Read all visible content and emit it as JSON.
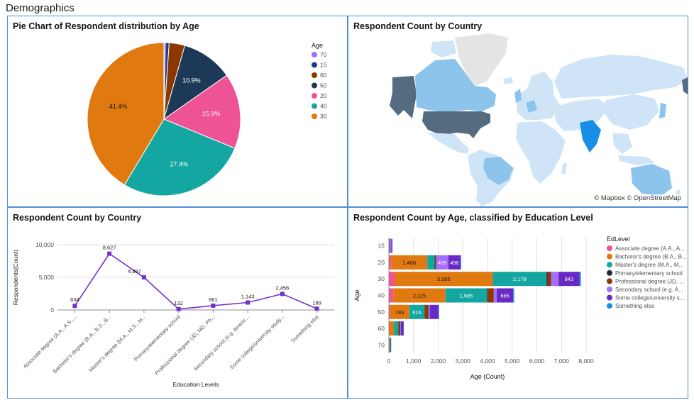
{
  "page": {
    "title": "Demographics"
  },
  "colors": {
    "age": {
      "70": "#a56eff",
      "15": "#1d3c8f",
      "60": "#8a3800",
      "50": "#1c3a57",
      "20": "#ee5396",
      "40": "#14a6a0",
      "30": "#e07a10"
    },
    "edlevel": [
      "#ee5396",
      "#e07a10",
      "#14a6a0",
      "#1c2a3a",
      "#8a3800",
      "#a56eff",
      "#6929c4",
      "#1192e8"
    ],
    "line": "#6f33c9",
    "panel_border": "#4f8fd8"
  },
  "pie_panel": {
    "title": "Pie Chart of Respondent distribution by Age"
  },
  "map_panel": {
    "title": "Respondent Count by Country",
    "attribution": "© Mapbox © OpenStreetMap",
    "colors": {
      "ocean": "#ffffff",
      "land_light": "#cfe5f7",
      "land_mid": "#8cc4ec",
      "land_dark": "#546b80",
      "land_none": "#e4e4e4",
      "highlight": "#1a8ee6"
    }
  },
  "line_panel": {
    "title": "Respondent Count by Country"
  },
  "bar_panel": {
    "title": "Respondent Count by Age, classified by Education Level"
  },
  "chart_data": [
    {
      "type": "pie",
      "title": "Pie Chart of Respondent distribution by Age",
      "legend_title": "Age",
      "legend_position": "top-right",
      "legend": [
        "70",
        "15",
        "60",
        "50",
        "20",
        "40",
        "30"
      ],
      "slices": [
        {
          "label": "70",
          "percent": 0.3,
          "show_label": false
        },
        {
          "label": "15",
          "percent": 0.8,
          "show_label": false
        },
        {
          "label": "60",
          "percent": 3.3,
          "show_label": false
        },
        {
          "label": "50",
          "percent": 10.9,
          "show_label": true,
          "text": "10.9%"
        },
        {
          "label": "20",
          "percent": 15.9,
          "show_label": true,
          "text": "15.9%"
        },
        {
          "label": "40",
          "percent": 27.4,
          "show_label": true,
          "text": "27.4%"
        },
        {
          "label": "30",
          "percent": 41.4,
          "show_label": true,
          "text": "41.4%"
        }
      ]
    },
    {
      "type": "line",
      "title": "Respondent Count by Country",
      "xlabel": "Education Levels",
      "ylabel": "Respondents(Count)",
      "ylim": [
        0,
        10000
      ],
      "yticks": [
        0,
        5000,
        10000
      ],
      "ytick_labels": [
        "0",
        "5,000",
        "10,000"
      ],
      "categories": [
        "Associate degree (A.A., A.S.,...",
        "Bachelor's degree (B.A., B.S., B...",
        "Master's degree (M.A., M.S., M...",
        "Primary/elementary school",
        "Professional degree (JD, MD, Ph...",
        "Secondary school (e.g. Americ...",
        "Some college/university study...",
        "Something else"
      ],
      "values": [
        634,
        8627,
        4997,
        132,
        661,
        1143,
        2456,
        189
      ],
      "value_labels": [
        "634",
        "8,627",
        "4,997",
        "132",
        "661",
        "1,143",
        "2,456",
        "189"
      ]
    },
    {
      "type": "bar",
      "orientation": "horizontal",
      "stacked": true,
      "title": "Respondent Count by Age, classified by Education Level",
      "xlabel": "Age (Count)",
      "ylabel": "Age",
      "xlim": [
        0,
        8000
      ],
      "xticks": [
        0,
        1000,
        2000,
        3000,
        4000,
        5000,
        6000,
        7000,
        8000
      ],
      "xtick_labels": [
        "0",
        "1,000",
        "2,000",
        "3,000",
        "4,000",
        "5,000",
        "6,000",
        "7,000",
        "8,000"
      ],
      "legend_title": "EdLevel",
      "legend_position": "right",
      "legend": [
        "Associate degree (A.A., A...",
        "Bachelor's degree (B.A., B...",
        "Master's degree (M.A., M...",
        "Primary/elementary school",
        "Professional degree (JD, ...",
        "Secondary school (e.g. A...",
        "Some college/university s...",
        "Something else"
      ],
      "categories": [
        "15",
        "20",
        "30",
        "40",
        "50",
        "60",
        "70"
      ],
      "series": [
        {
          "name": "Associate degree (A.A., A...",
          "values": [
            5,
            90,
            230,
            180,
            45,
            15,
            2
          ],
          "labels": [
            "",
            "",
            "",
            "",
            "",
            "",
            ""
          ]
        },
        {
          "name": "Bachelor's degree (B.A., B...",
          "values": [
            10,
            1468,
            3985,
            2115,
            783,
            190,
            25
          ],
          "labels": [
            "",
            "1,468",
            "3,985",
            "2,115",
            "783",
            "",
            ""
          ]
        },
        {
          "name": "Master's degree (M.A., M...",
          "values": [
            5,
            300,
            2178,
            1685,
            616,
            180,
            30
          ],
          "labels": [
            "",
            "",
            "2,178",
            "1,685",
            "616",
            "",
            ""
          ]
        },
        {
          "name": "Primary/elementary school",
          "values": [
            10,
            25,
            40,
            25,
            15,
            5,
            0
          ],
          "labels": [
            "",
            "",
            "",
            "",
            "",
            "",
            ""
          ]
        },
        {
          "name": "Professional degree (JD, ...",
          "values": [
            5,
            35,
            150,
            250,
            150,
            80,
            10
          ],
          "labels": [
            "",
            "",
            "",
            "",
            "",
            "",
            ""
          ]
        },
        {
          "name": "Secondary school (e.g. A...",
          "values": [
            60,
            495,
            300,
            120,
            50,
            20,
            2
          ],
          "labels": [
            "",
            "495",
            "",
            "",
            "",
            "",
            ""
          ]
        },
        {
          "name": "Some college/university s...",
          "values": [
            35,
            496,
            843,
            665,
            350,
            100,
            8
          ],
          "labels": [
            "",
            "496",
            "843",
            "665",
            "",
            "",
            ""
          ]
        },
        {
          "name": "Something else",
          "values": [
            5,
            20,
            60,
            40,
            30,
            10,
            1
          ],
          "labels": [
            "",
            "",
            "",
            "",
            "",
            "",
            ""
          ]
        }
      ]
    }
  ]
}
